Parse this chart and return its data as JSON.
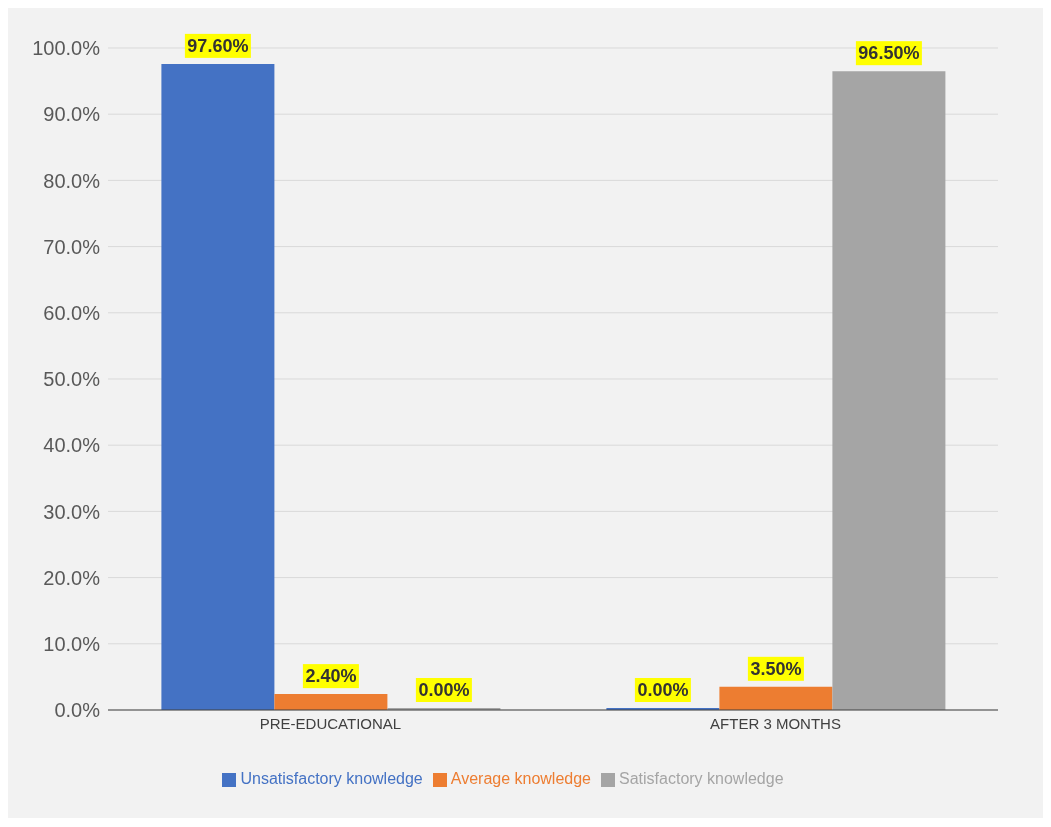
{
  "chart_data": {
    "type": "bar",
    "categories": [
      "PRE-EDUCATIONAL",
      "AFTER 3 MONTHS"
    ],
    "series": [
      {
        "name": "Unsatisfactory knowledge",
        "color": "#4472c4",
        "values": [
          97.6,
          0
        ],
        "value_labels": [
          "97.60%",
          "0.00%"
        ]
      },
      {
        "name": "Average knowledge",
        "color": "#ed7d31",
        "values": [
          2.4,
          3.5
        ],
        "value_labels": [
          "2.40%",
          "3.50%"
        ]
      },
      {
        "name": "Satisfactory knowledge",
        "color": "#a5a5a5",
        "values": [
          0,
          96.5
        ],
        "value_labels": [
          "0.00%",
          "96.50%"
        ]
      }
    ],
    "ylim": [
      0,
      100
    ],
    "yticks": [
      {
        "value": 0,
        "label": "0.0%"
      },
      {
        "value": 10,
        "label": "10.0%"
      },
      {
        "value": 20,
        "label": "20.0%"
      },
      {
        "value": 30,
        "label": "30.0%"
      },
      {
        "value": 40,
        "label": "40.0%"
      },
      {
        "value": 50,
        "label": "50.0%"
      },
      {
        "value": 60,
        "label": "60.0%"
      },
      {
        "value": 70,
        "label": "70.0%"
      },
      {
        "value": 80,
        "label": "80.0%"
      },
      {
        "value": 90,
        "label": "90.0%"
      },
      {
        "value": 100,
        "label": "100.0%"
      }
    ],
    "grid": "y",
    "legend": "bottom"
  }
}
